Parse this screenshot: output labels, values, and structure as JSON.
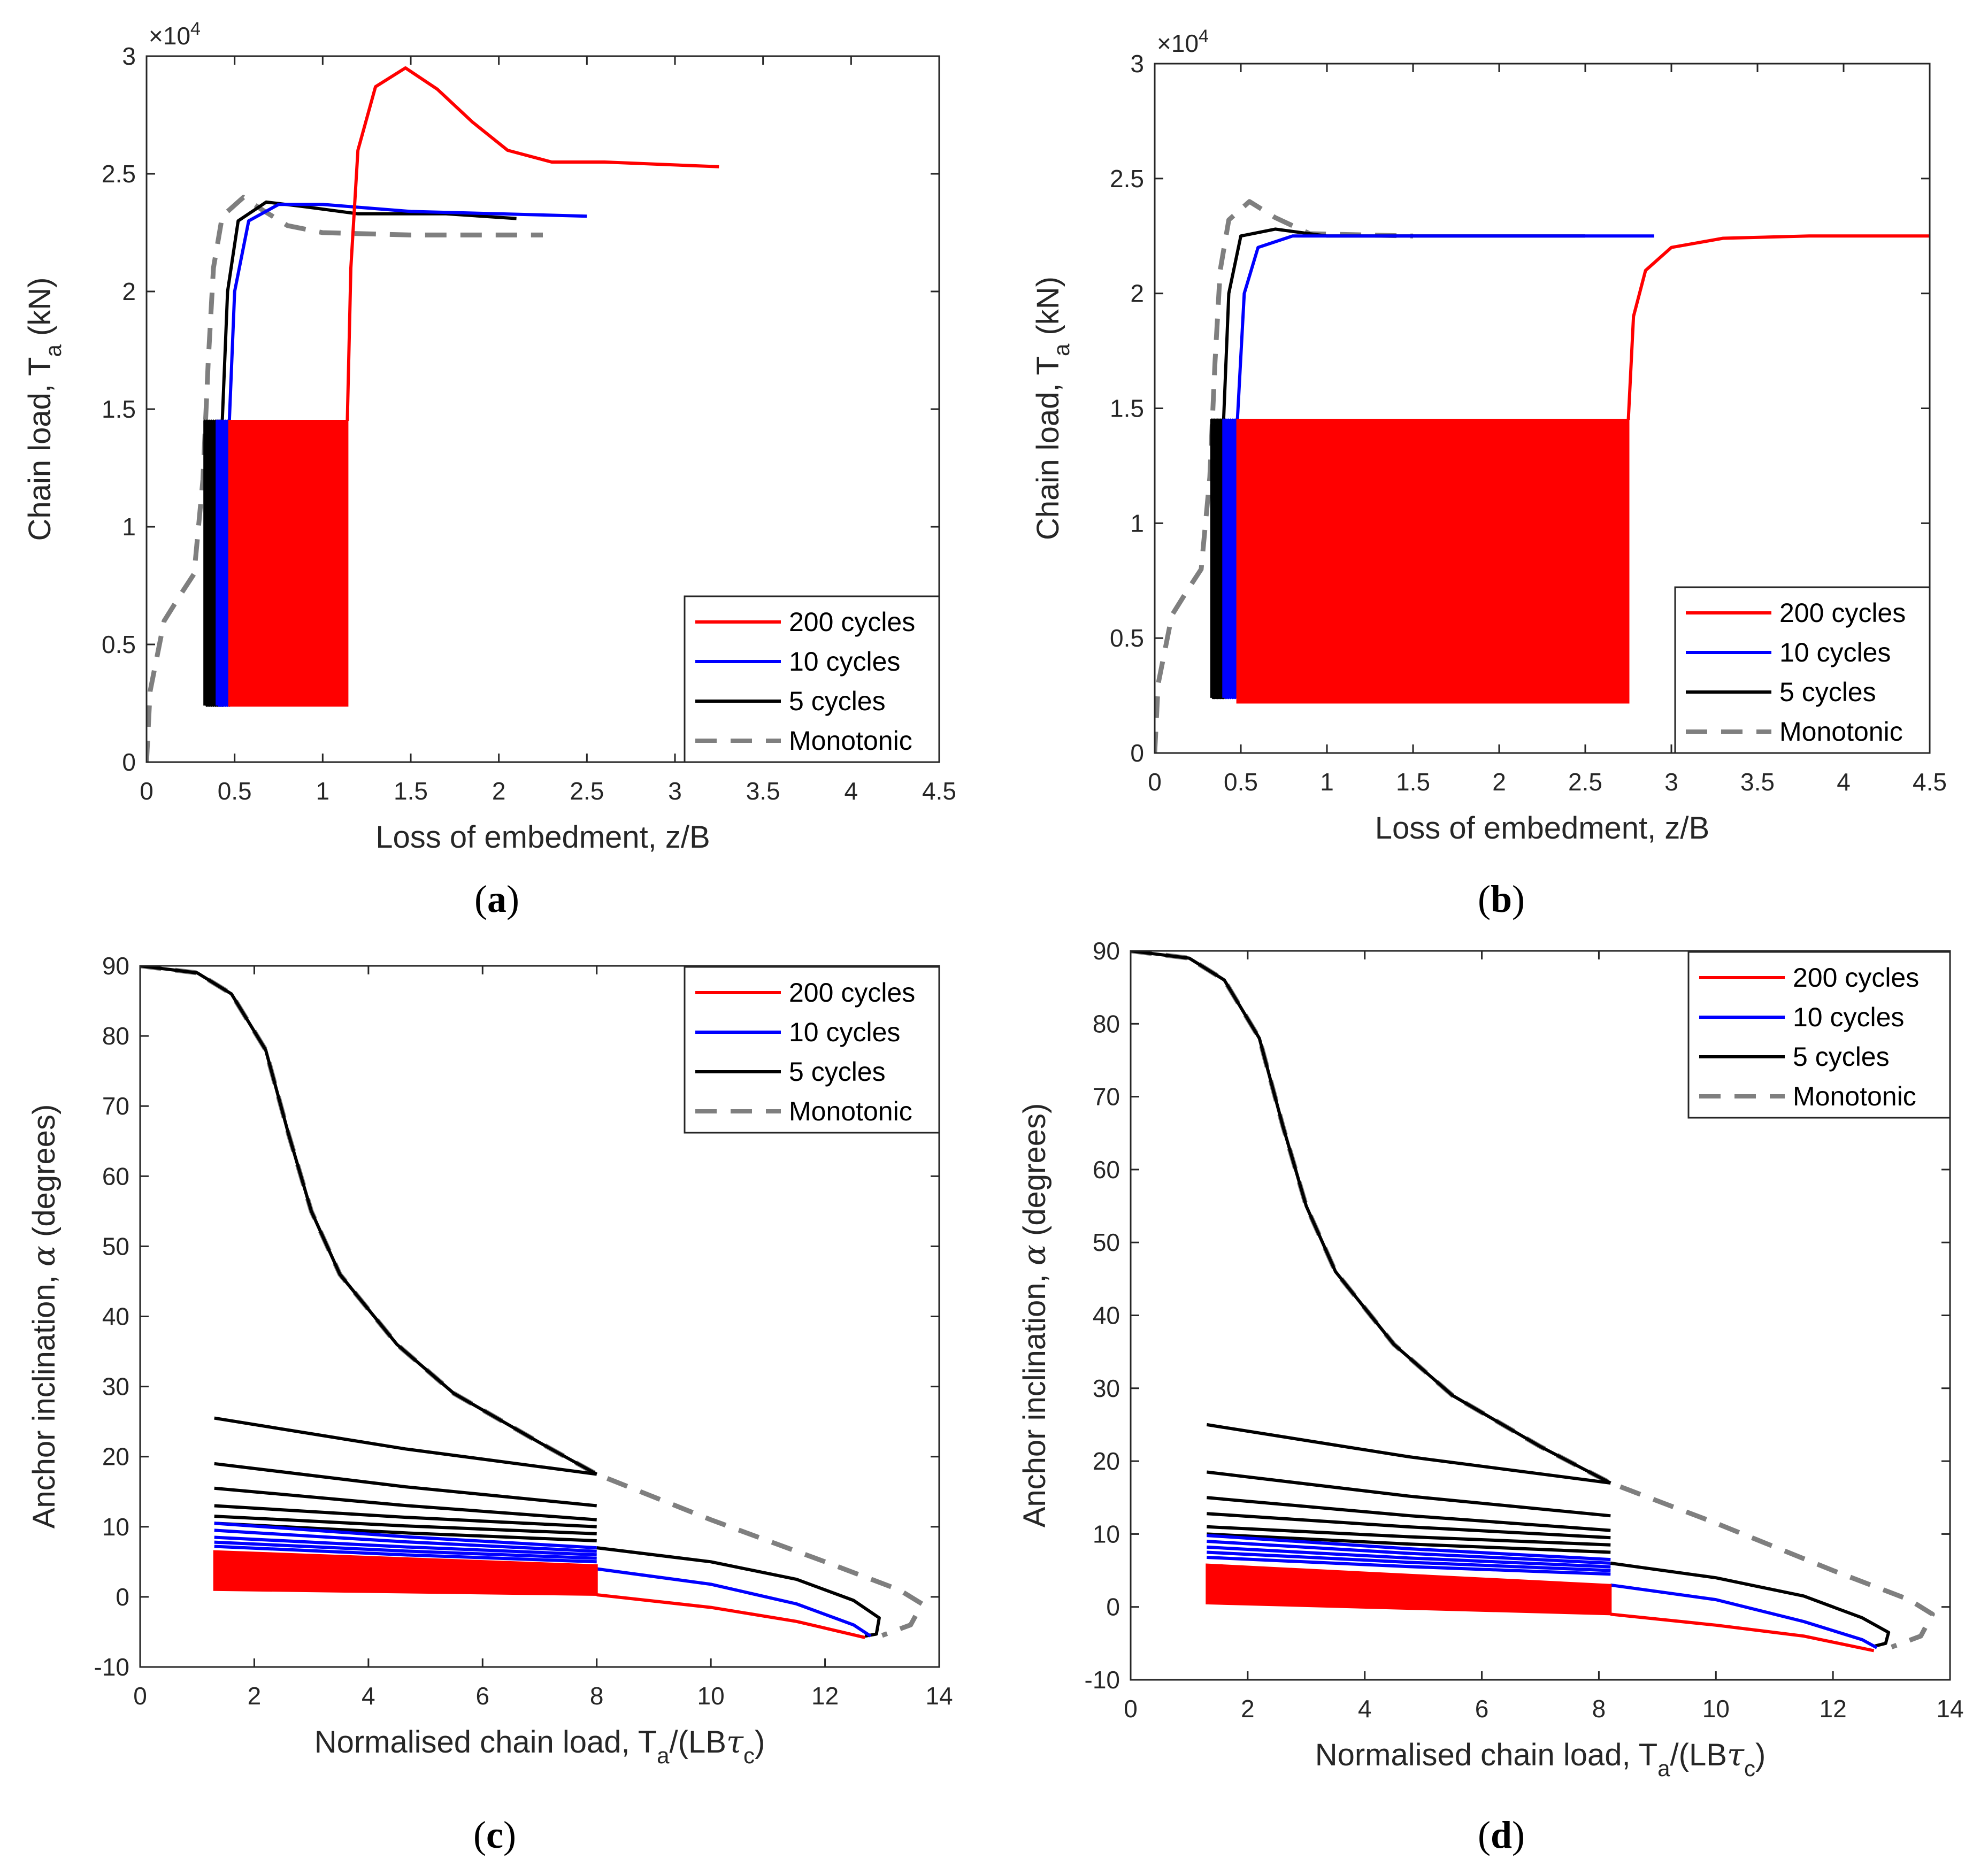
{
  "colors": {
    "c200": "#ff0000",
    "c10": "#0000ff",
    "c5": "#000000",
    "mono": "#7f7f7f"
  },
  "chart_data": [
    {
      "panel_label": "a",
      "type": "line",
      "xlabel": "Loss of embedment, z/B",
      "ylabel": {
        "main": "Chain load, T",
        "sub": "a",
        "tail": " (kN)"
      },
      "multiplier": {
        "base": "×10",
        "exp": "4"
      },
      "xlim": [
        0,
        4.5
      ],
      "ylim": [
        0,
        3
      ],
      "xticks": [
        "0",
        "0.5",
        "1",
        "1.5",
        "2",
        "2.5",
        "3",
        "3.5",
        "4",
        "4.5"
      ],
      "yticks": [
        "0",
        "0.5",
        "1",
        "1.5",
        "2",
        "2.5",
        "3"
      ],
      "legend": {
        "position": "bottom-right",
        "entries": [
          "200 cycles",
          "10 cycles",
          "5 cycles",
          "Monotonic"
        ]
      },
      "series": [
        {
          "name": "Monotonic",
          "style": "dash",
          "points": [
            [
              0,
              0
            ],
            [
              0.02,
              0.3
            ],
            [
              0.1,
              0.6
            ],
            [
              0.2,
              0.72
            ],
            [
              0.27,
              0.8
            ],
            [
              0.32,
              1.2
            ],
            [
              0.35,
              1.7
            ],
            [
              0.38,
              2.1
            ],
            [
              0.43,
              2.32
            ],
            [
              0.55,
              2.4
            ],
            [
              0.65,
              2.35
            ],
            [
              0.8,
              2.28
            ],
            [
              1.0,
              2.25
            ],
            [
              1.5,
              2.24
            ],
            [
              2.25,
              2.24
            ]
          ]
        },
        {
          "name": "5 cycles",
          "style": "solid",
          "cycles": {
            "x": [
              0.33,
              0.43
            ],
            "y": [
              0.24,
              1.45
            ],
            "n": 8
          },
          "points": [
            [
              0.43,
              1.45
            ],
            [
              0.46,
              2.0
            ],
            [
              0.52,
              2.3
            ],
            [
              0.68,
              2.38
            ],
            [
              0.9,
              2.36
            ],
            [
              1.2,
              2.33
            ],
            [
              1.7,
              2.33
            ],
            [
              2.1,
              2.31
            ]
          ]
        },
        {
          "name": "10 cycles",
          "style": "solid",
          "cycles": {
            "x": [
              0.4,
              0.47
            ],
            "y": [
              0.24,
              1.45
            ],
            "n": 6
          },
          "points": [
            [
              0.47,
              1.45
            ],
            [
              0.5,
              2.0
            ],
            [
              0.58,
              2.3
            ],
            [
              0.75,
              2.37
            ],
            [
              1.0,
              2.37
            ],
            [
              1.5,
              2.34
            ],
            [
              2.0,
              2.33
            ],
            [
              2.5,
              2.32
            ]
          ]
        },
        {
          "name": "200 cycles",
          "style": "solid",
          "band": {
            "x": [
              0.47,
              1.14
            ],
            "y": [
              0.24,
              1.45
            ],
            "n": 200
          },
          "points": [
            [
              1.14,
              1.45
            ],
            [
              1.16,
              2.1
            ],
            [
              1.2,
              2.6
            ],
            [
              1.3,
              2.87
            ],
            [
              1.47,
              2.95
            ],
            [
              1.65,
              2.86
            ],
            [
              1.85,
              2.72
            ],
            [
              2.05,
              2.6
            ],
            [
              2.3,
              2.55
            ],
            [
              2.6,
              2.55
            ],
            [
              3.25,
              2.53
            ]
          ]
        }
      ]
    },
    {
      "panel_label": "b",
      "type": "line",
      "xlabel": "Loss of embedment, z/B",
      "ylabel": {
        "main": "Chain load, T",
        "sub": "a",
        "tail": " (kN)"
      },
      "multiplier": {
        "base": "×10",
        "exp": "4"
      },
      "xlim": [
        0,
        4.5
      ],
      "ylim": [
        0,
        3
      ],
      "xticks": [
        "0",
        "0.5",
        "1",
        "1.5",
        "2",
        "2.5",
        "3",
        "3.5",
        "4",
        "4.5"
      ],
      "yticks": [
        "0",
        "0.5",
        "1",
        "1.5",
        "2",
        "2.5",
        "3"
      ],
      "legend": {
        "position": "bottom-right",
        "entries": [
          "200 cycles",
          "10 cycles",
          "5 cycles",
          "Monotonic"
        ]
      },
      "series": [
        {
          "name": "Monotonic",
          "style": "dash",
          "points": [
            [
              0,
              0
            ],
            [
              0.02,
              0.3
            ],
            [
              0.1,
              0.6
            ],
            [
              0.2,
              0.72
            ],
            [
              0.27,
              0.8
            ],
            [
              0.32,
              1.2
            ],
            [
              0.35,
              1.7
            ],
            [
              0.38,
              2.1
            ],
            [
              0.43,
              2.32
            ],
            [
              0.55,
              2.4
            ],
            [
              0.7,
              2.33
            ],
            [
              0.9,
              2.26
            ],
            [
              1.5,
              2.25
            ]
          ]
        },
        {
          "name": "5 cycles",
          "style": "solid",
          "cycles": {
            "x": [
              0.33,
              0.4
            ],
            "y": [
              0.24,
              1.45
            ],
            "n": 8
          },
          "points": [
            [
              0.4,
              1.45
            ],
            [
              0.43,
              2.0
            ],
            [
              0.5,
              2.25
            ],
            [
              0.7,
              2.28
            ],
            [
              1.0,
              2.25
            ],
            [
              2.5,
              2.25
            ]
          ]
        },
        {
          "name": "10 cycles",
          "style": "solid",
          "cycles": {
            "x": [
              0.4,
              0.48
            ],
            "y": [
              0.24,
              1.45
            ],
            "n": 6
          },
          "points": [
            [
              0.48,
              1.45
            ],
            [
              0.52,
              2.0
            ],
            [
              0.6,
              2.2
            ],
            [
              0.8,
              2.25
            ],
            [
              2.9,
              2.25
            ]
          ]
        },
        {
          "name": "200 cycles",
          "style": "solid",
          "band": {
            "x": [
              0.48,
              2.75
            ],
            "y": [
              0.22,
              1.45
            ],
            "n": 200
          },
          "points": [
            [
              2.75,
              1.45
            ],
            [
              2.78,
              1.9
            ],
            [
              2.85,
              2.1
            ],
            [
              3.0,
              2.2
            ],
            [
              3.3,
              2.24
            ],
            [
              3.8,
              2.25
            ],
            [
              4.5,
              2.25
            ]
          ]
        }
      ]
    },
    {
      "panel_label": "c",
      "type": "line",
      "xlabel": {
        "main": "Normalised chain load, T",
        "sub": "a",
        "tail": "/(LB",
        "tau": "τ",
        "tausub": "c",
        "close": ")"
      },
      "ylabel": {
        "main": "Anchor inclination, ",
        "alpha": "α",
        "tail": " (degrees)"
      },
      "xlim": [
        0,
        14
      ],
      "ylim": [
        -10,
        90
      ],
      "xticks": [
        "0",
        "2",
        "4",
        "6",
        "8",
        "10",
        "12",
        "14"
      ],
      "yticks": [
        "-10",
        "0",
        "10",
        "20",
        "30",
        "40",
        "50",
        "60",
        "70",
        "80",
        "90"
      ],
      "legend": {
        "position": "top-right",
        "entries": [
          "200 cycles",
          "10 cycles",
          "5 cycles",
          "Monotonic"
        ]
      },
      "series": [
        {
          "name": "Monotonic",
          "style": "dash",
          "points": [
            [
              0,
              90
            ],
            [
              1,
              89
            ],
            [
              1.6,
              86
            ],
            [
              2.2,
              78
            ],
            [
              2.6,
              66
            ],
            [
              3,
              55
            ],
            [
              3.5,
              46
            ],
            [
              4.5,
              36
            ],
            [
              5.5,
              29
            ],
            [
              7,
              22
            ],
            [
              8,
              17.5
            ],
            [
              10,
              11
            ],
            [
              12,
              5
            ],
            [
              13.3,
              1
            ],
            [
              13.7,
              -1
            ],
            [
              13.5,
              -4
            ],
            [
              13,
              -5.5
            ]
          ]
        },
        {
          "name": "5 cycles",
          "style": "solid",
          "fan": {
            "x": [
              1.3,
              8
            ],
            "y0": [
              25.5,
              19,
              15.5,
              13,
              11.5,
              10.5
            ],
            "y1": [
              17.5,
              13,
              11,
              10,
              9,
              8
            ]
          },
          "points": [
            [
              0,
              90
            ],
            [
              1,
              89
            ],
            [
              1.6,
              86
            ],
            [
              2.2,
              78
            ],
            [
              2.6,
              66
            ],
            [
              3,
              55
            ],
            [
              3.5,
              46
            ],
            [
              4.5,
              36
            ],
            [
              5.5,
              29
            ],
            [
              7,
              22
            ],
            [
              8,
              17.5
            ]
          ],
          "tail": [
            [
              8,
              7
            ],
            [
              10,
              5
            ],
            [
              11.5,
              2.5
            ],
            [
              12.5,
              -0.5
            ],
            [
              12.95,
              -3
            ],
            [
              12.9,
              -5.3
            ],
            [
              12.7,
              -5.6
            ]
          ]
        },
        {
          "name": "10 cycles",
          "style": "solid",
          "fan": {
            "x": [
              1.3,
              8
            ],
            "y0": [
              10.5,
              9.5,
              8.5,
              7.8,
              7.2
            ],
            "y1": [
              7,
              6.5,
              6,
              5.5,
              5
            ]
          },
          "tail": [
            [
              8,
              4
            ],
            [
              10,
              1.8
            ],
            [
              11.5,
              -1
            ],
            [
              12.5,
              -4
            ],
            [
              12.8,
              -5.6
            ]
          ]
        },
        {
          "name": "200 cycles",
          "style": "solid",
          "band": {
            "x": [
              1.3,
              8
            ],
            "y0": [
              1,
              6.5
            ],
            "y1": [
              0.3,
              4.5
            ],
            "n": 200
          },
          "tail": [
            [
              8,
              0.3
            ],
            [
              10,
              -1.5
            ],
            [
              11.5,
              -3.5
            ],
            [
              12.7,
              -5.8
            ]
          ]
        }
      ]
    },
    {
      "panel_label": "d",
      "type": "line",
      "xlabel": {
        "main": "Normalised chain load, T",
        "sub": "a",
        "tail": "/(LB",
        "tau": "τ",
        "tausub": "c",
        "close": ")"
      },
      "ylabel": {
        "main": "Anchor inclination, ",
        "alpha": "α",
        "tail": " (degrees)"
      },
      "xlim": [
        0,
        14
      ],
      "ylim": [
        -10,
        90
      ],
      "xticks": [
        "0",
        "2",
        "4",
        "6",
        "8",
        "10",
        "12",
        "14"
      ],
      "yticks": [
        "-10",
        "0",
        "10",
        "20",
        "30",
        "40",
        "50",
        "60",
        "70",
        "80",
        "90"
      ],
      "legend": {
        "position": "top-right",
        "entries": [
          "200 cycles",
          "10 cycles",
          "5 cycles",
          "Monotonic"
        ]
      },
      "series": [
        {
          "name": "Monotonic",
          "style": "dash",
          "points": [
            [
              0,
              90
            ],
            [
              1,
              89
            ],
            [
              1.6,
              86
            ],
            [
              2.2,
              78
            ],
            [
              2.6,
              66
            ],
            [
              3,
              55
            ],
            [
              3.5,
              46
            ],
            [
              4.5,
              36
            ],
            [
              5.5,
              29
            ],
            [
              7,
              22
            ],
            [
              8.2,
              17
            ],
            [
              10,
              11.5
            ],
            [
              12,
              5
            ],
            [
              13.3,
              1
            ],
            [
              13.7,
              -1
            ],
            [
              13.5,
              -4
            ],
            [
              13,
              -5.5
            ]
          ]
        },
        {
          "name": "5 cycles",
          "style": "solid",
          "fan": {
            "x": [
              1.3,
              8.2
            ],
            "y0": [
              25,
              18.5,
              15,
              12.8,
              11,
              10
            ],
            "y1": [
              17,
              12.5,
              10.5,
              9.5,
              8.5,
              7.5
            ]
          },
          "points": [
            [
              0,
              90
            ],
            [
              1,
              89
            ],
            [
              1.6,
              86
            ],
            [
              2.2,
              78
            ],
            [
              2.6,
              66
            ],
            [
              3,
              55
            ],
            [
              3.5,
              46
            ],
            [
              4.5,
              36
            ],
            [
              5.5,
              29
            ],
            [
              7,
              22
            ],
            [
              8.2,
              17
            ]
          ],
          "tail": [
            [
              8.2,
              6
            ],
            [
              10,
              4
            ],
            [
              11.5,
              1.5
            ],
            [
              12.5,
              -1.5
            ],
            [
              12.95,
              -3.5
            ],
            [
              12.9,
              -5
            ],
            [
              12.7,
              -5.4
            ]
          ]
        },
        {
          "name": "10 cycles",
          "style": "solid",
          "fan": {
            "x": [
              1.3,
              8.2
            ],
            "y0": [
              9.8,
              9,
              8.2,
              7.5,
              6.8
            ],
            "y1": [
              6.5,
              6,
              5.5,
              5,
              4.5
            ]
          },
          "tail": [
            [
              8.2,
              3
            ],
            [
              10,
              1
            ],
            [
              11.5,
              -2
            ],
            [
              12.5,
              -4.5
            ],
            [
              12.75,
              -5.6
            ]
          ]
        },
        {
          "name": "200 cycles",
          "style": "solid",
          "band": {
            "x": [
              1.3,
              8.2
            ],
            "y0": [
              0.5,
              5.8
            ],
            "y1": [
              -1,
              3
            ],
            "n": 200
          },
          "tail": [
            [
              8.2,
              -1
            ],
            [
              10,
              -2.5
            ],
            [
              11.5,
              -4
            ],
            [
              12.7,
              -6
            ]
          ]
        }
      ]
    }
  ]
}
